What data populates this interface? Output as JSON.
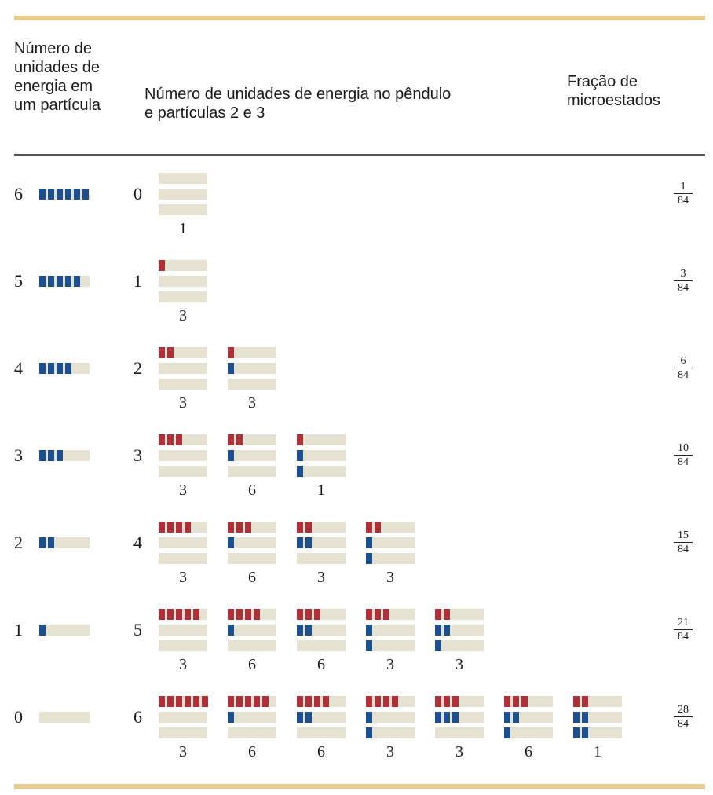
{
  "headers": {
    "particle_units": [
      "Número de",
      "unidades de",
      "energia em",
      "um partícula"
    ],
    "pendulum_units": [
      "Número de unidades de energia no pêndulo",
      "e partículas 2 e 3"
    ],
    "fraction": [
      "Fração de",
      "microestados"
    ]
  },
  "colors": {
    "particle": "#1c4f90",
    "pendulum": "#b0303a",
    "empty": "#e6e2d2",
    "rule": "#e6cd8f"
  },
  "rows": [
    {
      "particle_units": "6",
      "remaining_units": "0",
      "fraction": {
        "num": "1",
        "den": "84"
      },
      "configs": [
        {
          "bars": [
            0,
            0,
            0
          ],
          "count": "1"
        }
      ]
    },
    {
      "particle_units": "5",
      "remaining_units": "1",
      "fraction": {
        "num": "3",
        "den": "84"
      },
      "configs": [
        {
          "bars": [
            1,
            0,
            0
          ],
          "count": "3"
        }
      ]
    },
    {
      "particle_units": "4",
      "remaining_units": "2",
      "fraction": {
        "num": "6",
        "den": "84"
      },
      "configs": [
        {
          "bars": [
            2,
            0,
            0
          ],
          "count": "3"
        },
        {
          "bars": [
            1,
            1,
            0
          ],
          "count": "3"
        }
      ]
    },
    {
      "particle_units": "3",
      "remaining_units": "3",
      "fraction": {
        "num": "10",
        "den": "84"
      },
      "configs": [
        {
          "bars": [
            3,
            0,
            0
          ],
          "count": "3"
        },
        {
          "bars": [
            2,
            1,
            0
          ],
          "count": "6"
        },
        {
          "bars": [
            1,
            1,
            1
          ],
          "count": "1"
        }
      ]
    },
    {
      "particle_units": "2",
      "remaining_units": "4",
      "fraction": {
        "num": "15",
        "den": "84"
      },
      "configs": [
        {
          "bars": [
            4,
            0,
            0
          ],
          "count": "3"
        },
        {
          "bars": [
            3,
            1,
            0
          ],
          "count": "6"
        },
        {
          "bars": [
            2,
            2,
            0
          ],
          "count": "3"
        },
        {
          "bars": [
            2,
            1,
            1
          ],
          "count": "3"
        }
      ]
    },
    {
      "particle_units": "1",
      "remaining_units": "5",
      "fraction": {
        "num": "21",
        "den": "84"
      },
      "configs": [
        {
          "bars": [
            5,
            0,
            0
          ],
          "count": "3"
        },
        {
          "bars": [
            4,
            1,
            0
          ],
          "count": "6"
        },
        {
          "bars": [
            3,
            2,
            0
          ],
          "count": "6"
        },
        {
          "bars": [
            3,
            1,
            1
          ],
          "count": "3"
        },
        {
          "bars": [
            2,
            2,
            1
          ],
          "count": "3"
        }
      ]
    },
    {
      "particle_units": "0",
      "remaining_units": "6",
      "fraction": {
        "num": "28",
        "den": "84"
      },
      "configs": [
        {
          "bars": [
            6,
            0,
            0
          ],
          "count": "3"
        },
        {
          "bars": [
            5,
            1,
            0
          ],
          "count": "6"
        },
        {
          "bars": [
            4,
            2,
            0
          ],
          "count": "6"
        },
        {
          "bars": [
            4,
            1,
            1
          ],
          "count": "3"
        },
        {
          "bars": [
            3,
            3,
            0
          ],
          "count": "3"
        },
        {
          "bars": [
            3,
            2,
            1
          ],
          "count": "6"
        },
        {
          "bars": [
            2,
            2,
            2
          ],
          "count": "1"
        }
      ]
    }
  ]
}
